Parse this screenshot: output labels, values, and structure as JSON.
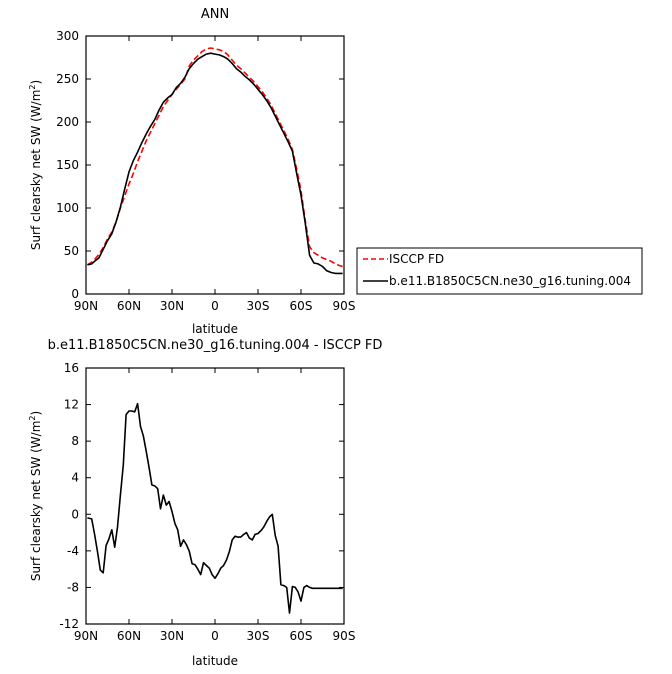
{
  "chart_data": [
    {
      "type": "line",
      "title": "ANN",
      "xlabel": "latitude",
      "ylabel": "Surf clearsky net SW (W/m",
      "ylabel_sup": "2",
      "ylabel_close": ")",
      "xlim": [
        90,
        -90
      ],
      "ylim": [
        0,
        300
      ],
      "x_ticks": [
        90,
        60,
        30,
        0,
        -30,
        -60,
        -90
      ],
      "x_tick_labels": [
        "90N",
        "60N",
        "30N",
        "0",
        "30S",
        "60S",
        "90S"
      ],
      "y_ticks": [
        0,
        50,
        100,
        150,
        200,
        250,
        300
      ],
      "y_tick_labels": [
        "0",
        "50",
        "100",
        "150",
        "200",
        "250",
        "300"
      ],
      "legend_position": "right",
      "series": [
        {
          "name": "ISCCP FD",
          "color": "#ff0000",
          "dash": "dashed",
          "x": [
            89,
            86,
            84,
            81,
            78,
            75,
            72,
            69,
            66,
            63,
            60,
            57,
            54,
            51,
            48,
            45,
            42,
            39,
            36,
            33,
            30,
            27,
            24,
            21,
            18,
            15,
            12,
            9,
            6,
            3,
            0,
            -3,
            -6,
            -9,
            -12,
            -15,
            -18,
            -21,
            -24,
            -27,
            -30,
            -33,
            -36,
            -39,
            -42,
            -45,
            -48,
            -51,
            -54,
            -57,
            -60,
            -63,
            -66,
            -69,
            -72,
            -75,
            -78,
            -81,
            -84,
            -87,
            -89
          ],
          "y": [
            34,
            37,
            40,
            46,
            54,
            64,
            72,
            84,
            100,
            114,
            128,
            140,
            154,
            166,
            178,
            188,
            198,
            208,
            218,
            225,
            232,
            238,
            244,
            250,
            265,
            272,
            277,
            282,
            285,
            286,
            285,
            284,
            282,
            278,
            272,
            266,
            262,
            257,
            252,
            247,
            241,
            235,
            228,
            220,
            210,
            200,
            190,
            180,
            168,
            145,
            120,
            85,
            55,
            48,
            45,
            42,
            40,
            38,
            35,
            33,
            32
          ]
        },
        {
          "name": "b.e11.B1850C5CN.ne30_g16.tuning.004",
          "color": "#000000",
          "dash": "solid",
          "x": [
            89,
            86,
            84,
            81,
            78,
            75,
            72,
            69,
            66,
            63,
            60,
            57,
            54,
            51,
            48,
            45,
            42,
            39,
            36,
            33,
            30,
            27,
            24,
            21,
            18,
            15,
            12,
            9,
            6,
            3,
            0,
            -3,
            -6,
            -9,
            -12,
            -15,
            -18,
            -21,
            -24,
            -27,
            -30,
            -33,
            -36,
            -39,
            -42,
            -45,
            -48,
            -51,
            -54,
            -57,
            -60,
            -63,
            -66,
            -69,
            -72,
            -75,
            -78,
            -81,
            -84,
            -87,
            -89
          ],
          "y": [
            34,
            35,
            38,
            42,
            52,
            62,
            70,
            84,
            101,
            122,
            142,
            155,
            165,
            176,
            186,
            195,
            203,
            214,
            223,
            228,
            232,
            240,
            245,
            252,
            262,
            268,
            273,
            276,
            279,
            280,
            279,
            278,
            276,
            273,
            268,
            262,
            258,
            253,
            249,
            244,
            238,
            232,
            225,
            217,
            207,
            197,
            187,
            177,
            166,
            140,
            115,
            82,
            45,
            36,
            35,
            32,
            27,
            25,
            24,
            24,
            24
          ]
        }
      ]
    },
    {
      "type": "line",
      "title": "b.e11.B1850C5CN.ne30_g16.tuning.004 - ISCCP FD",
      "xlabel": "latitude",
      "ylabel": "Surf clearsky net SW (W/m",
      "ylabel_sup": "2",
      "ylabel_close": ")",
      "xlim": [
        90,
        -90
      ],
      "ylim": [
        -12,
        16
      ],
      "x_ticks": [
        90,
        60,
        30,
        0,
        -30,
        -60,
        -90
      ],
      "x_tick_labels": [
        "90N",
        "60N",
        "30N",
        "0",
        "30S",
        "60S",
        "90S"
      ],
      "y_ticks": [
        -12,
        -8,
        -4,
        0,
        4,
        8,
        12,
        16
      ],
      "y_tick_labels": [
        "-12",
        "-8",
        "-4",
        "0",
        "4",
        "8",
        "12",
        "16"
      ],
      "series": [
        {
          "color": "#000000",
          "dash": "solid",
          "x": [
            89,
            86,
            84,
            82,
            80,
            78,
            76,
            74,
            72,
            70,
            68,
            66,
            64,
            62,
            60,
            58,
            56,
            54,
            52,
            50,
            48,
            46,
            44,
            42,
            40,
            38,
            36,
            34,
            32,
            30,
            28,
            26,
            24,
            22,
            20,
            18,
            16,
            14,
            12,
            10,
            8,
            6,
            4,
            2,
            0,
            -2,
            -4,
            -6,
            -8,
            -10,
            -12,
            -14,
            -16,
            -18,
            -20,
            -22,
            -24,
            -26,
            -28,
            -30,
            -32,
            -34,
            -36,
            -38,
            -40,
            -42,
            -44,
            -46,
            -48,
            -50,
            -52,
            -54,
            -56,
            -58,
            -60,
            -62,
            -64,
            -66,
            -68,
            -70,
            -72,
            -74,
            -76,
            -78,
            -80,
            -82,
            -84,
            -86,
            -88,
            -89
          ],
          "y": [
            -0.4,
            -0.5,
            -2.2,
            -4.1,
            -6.1,
            -6.4,
            -3.4,
            -2.7,
            -1.7,
            -3.6,
            -1.4,
            2.1,
            5.4,
            10.9,
            11.3,
            11.3,
            11.2,
            12.1,
            9.6,
            8.6,
            6.9,
            5.1,
            3.2,
            3.1,
            2.8,
            0.6,
            2.1,
            1.0,
            1.4,
            0.3,
            -1.0,
            -1.7,
            -3.5,
            -2.8,
            -3.3,
            -4.0,
            -5.4,
            -5.5,
            -6.0,
            -6.6,
            -5.3,
            -5.6,
            -5.9,
            -6.6,
            -7.0,
            -6.5,
            -5.9,
            -5.6,
            -5.0,
            -4.1,
            -2.8,
            -2.4,
            -2.5,
            -2.5,
            -2.2,
            -2.0,
            -2.6,
            -2.8,
            -2.2,
            -2.1,
            -1.8,
            -1.4,
            -0.8,
            -0.3,
            0.0,
            -2.3,
            -3.5,
            -7.7,
            -7.8,
            -8.0,
            -10.8,
            -7.9,
            -8.0,
            -8.5,
            -9.5,
            -8.0,
            -7.8,
            -8.0,
            -8.1,
            -8.1,
            -8.1,
            -8.1,
            -8.1,
            -8.1,
            -8.1,
            -8.1,
            -8.1,
            -8.1,
            -8.1,
            -8.1
          ]
        }
      ]
    }
  ]
}
